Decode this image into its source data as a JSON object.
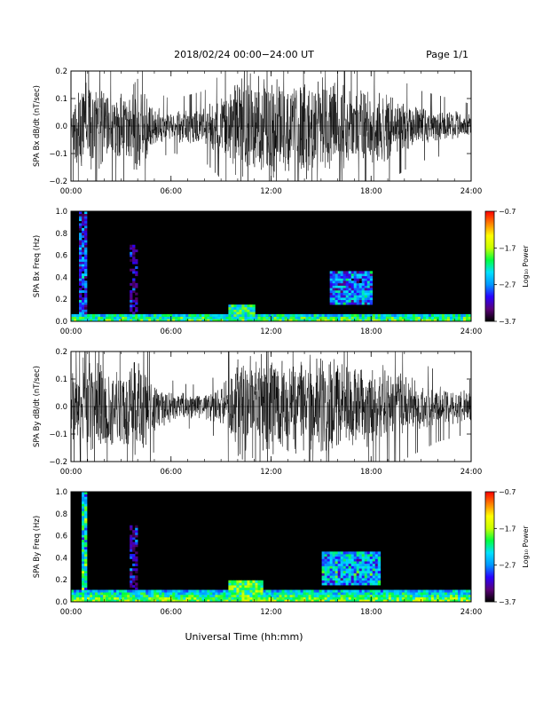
{
  "header": {
    "title": "2018/02/24  00:00−24:00 UT",
    "page": "Page 1/1"
  },
  "footer": {
    "xlabel": "Universal Time (hh:mm)"
  },
  "colorbar": {
    "label": "Log₁₀ Power",
    "ticks": [
      "−0.7",
      "−1.7",
      "−2.7",
      "−3.7"
    ],
    "range": [
      -3.7,
      -0.7
    ],
    "colors": [
      "#000000",
      "#5a0078",
      "#2a00ff",
      "#0096ff",
      "#00e0ff",
      "#00ff40",
      "#c8ff00",
      "#ffff00",
      "#ff8000",
      "#ff0000"
    ]
  },
  "chart_data": [
    {
      "type": "line",
      "ylabel": "SPA Bx dB/dt (nT/sec)",
      "xlim": [
        "00:00",
        "24:00"
      ],
      "ylim": [
        -0.2,
        0.2
      ],
      "xticks": [
        "00:00",
        "06:00",
        "12:00",
        "18:00",
        "24:00"
      ],
      "yticks": [
        "−0.2",
        "−0.1",
        "0.0",
        "0.1",
        "0.2"
      ],
      "series": [
        {
          "x_hours": [
            0,
            1,
            2,
            3,
            4,
            5,
            6,
            7,
            8,
            9,
            10,
            11,
            12,
            13,
            14,
            15,
            16,
            17,
            18,
            19,
            20,
            21,
            22,
            23,
            24
          ],
          "amplitude": [
            0.12,
            0.2,
            0.15,
            0.12,
            0.2,
            0.08,
            0.06,
            0.07,
            0.08,
            0.12,
            0.2,
            0.2,
            0.2,
            0.2,
            0.2,
            0.2,
            0.18,
            0.16,
            0.15,
            0.13,
            0.1,
            0.08,
            0.07,
            0.06,
            0.05
          ]
        }
      ]
    },
    {
      "type": "heatmap",
      "ylabel": "SPA Bx Freq (Hz)",
      "xlim": [
        "00:00",
        "24:00"
      ],
      "ylim": [
        0.0,
        1.0
      ],
      "xticks": [
        "00:00",
        "06:00",
        "12:00",
        "18:00",
        "24:00"
      ],
      "yticks": [
        "0.0",
        "0.2",
        "0.4",
        "0.6",
        "0.8",
        "1.0"
      ],
      "zlim": [
        -3.7,
        -0.7
      ],
      "features": [
        {
          "kind": "low-frequency band",
          "hours": [
            0,
            24
          ],
          "freq_hz": [
            0.0,
            0.06
          ],
          "log_power": -2.4
        },
        {
          "kind": "broadband burst",
          "hours": [
            0.5,
            1.0
          ],
          "freq_hz": [
            0.0,
            1.0
          ],
          "log_power": -2.6
        },
        {
          "kind": "broadband burst",
          "hours": [
            3.5,
            4.0
          ],
          "freq_hz": [
            0.0,
            0.7
          ],
          "log_power": -3.0
        },
        {
          "kind": "enhancement",
          "hours": [
            9.5,
            11.0
          ],
          "freq_hz": [
            0.0,
            0.15
          ],
          "log_power": -2.2
        },
        {
          "kind": "emission patch",
          "hours": [
            15.5,
            18.0
          ],
          "freq_hz": [
            0.15,
            0.45
          ],
          "log_power": -2.4
        }
      ]
    },
    {
      "type": "line",
      "ylabel": "SPA By dB/dt (nT/sec)",
      "xlim": [
        "00:00",
        "24:00"
      ],
      "ylim": [
        -0.2,
        0.2
      ],
      "xticks": [
        "00:00",
        "06:00",
        "12:00",
        "18:00",
        "24:00"
      ],
      "yticks": [
        "−0.2",
        "−0.1",
        "0.0",
        "0.1",
        "0.2"
      ],
      "series": [
        {
          "x_hours": [
            0,
            1,
            2,
            3,
            4,
            5,
            6,
            7,
            8,
            9,
            10,
            11,
            12,
            13,
            14,
            15,
            16,
            17,
            18,
            19,
            20,
            21,
            22,
            23,
            24
          ],
          "amplitude": [
            0.15,
            0.2,
            0.16,
            0.15,
            0.2,
            0.1,
            0.06,
            0.05,
            0.05,
            0.08,
            0.2,
            0.2,
            0.2,
            0.2,
            0.2,
            0.2,
            0.2,
            0.18,
            0.16,
            0.15,
            0.12,
            0.1,
            0.08,
            0.07,
            0.06
          ]
        }
      ]
    },
    {
      "type": "heatmap",
      "ylabel": "SPA By Freq (Hz)",
      "xlim": [
        "00:00",
        "24:00"
      ],
      "ylim": [
        0.0,
        1.0
      ],
      "xticks": [
        "00:00",
        "06:00",
        "12:00",
        "18:00",
        "24:00"
      ],
      "yticks": [
        "0.0",
        "0.2",
        "0.4",
        "0.6",
        "0.8",
        "1.0"
      ],
      "zlim": [
        -3.7,
        -0.7
      ],
      "features": [
        {
          "kind": "low-frequency band",
          "hours": [
            0,
            24
          ],
          "freq_hz": [
            0.0,
            0.1
          ],
          "log_power": -2.2
        },
        {
          "kind": "broadband burst",
          "hours": [
            0.7,
            0.9
          ],
          "freq_hz": [
            0.0,
            1.0
          ],
          "log_power": -1.9
        },
        {
          "kind": "broadband burst",
          "hours": [
            3.5,
            4.0
          ],
          "freq_hz": [
            0.0,
            0.7
          ],
          "log_power": -3.0
        },
        {
          "kind": "enhancement",
          "hours": [
            9.5,
            11.5
          ],
          "freq_hz": [
            0.0,
            0.2
          ],
          "log_power": -2.0
        },
        {
          "kind": "emission patch",
          "hours": [
            15.0,
            18.5
          ],
          "freq_hz": [
            0.15,
            0.45
          ],
          "log_power": -2.2
        }
      ]
    }
  ]
}
